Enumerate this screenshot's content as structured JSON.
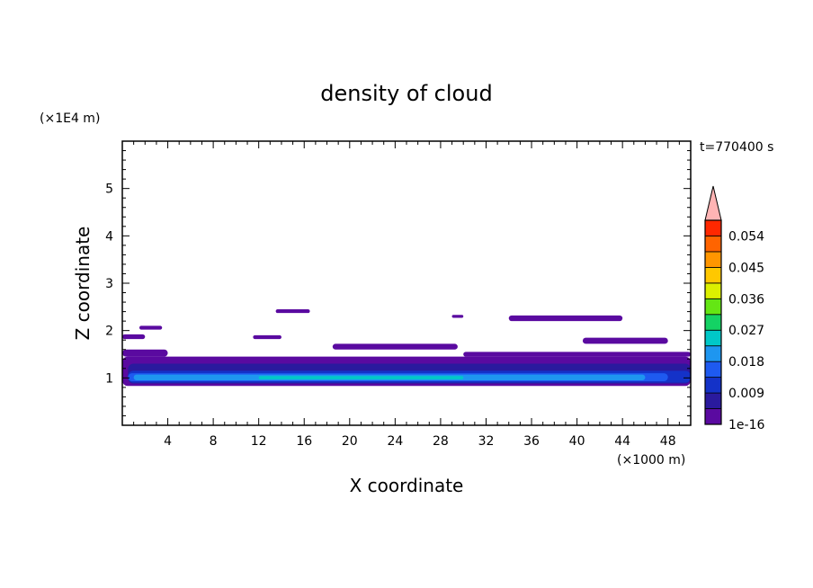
{
  "chart_data": {
    "type": "heatmap",
    "title": "density of cloud",
    "xlabel": "X coordinate",
    "ylabel": "Z coordinate",
    "x_unit": "(×1000 m)",
    "y_unit": "(×1E4 m)",
    "time_label": "t=770400 s",
    "xlim": [
      0,
      50
    ],
    "ylim": [
      0,
      6
    ],
    "x_ticks": [
      4,
      8,
      12,
      16,
      20,
      24,
      28,
      32,
      36,
      40,
      44,
      48
    ],
    "y_ticks": [
      1,
      2,
      3,
      4,
      5
    ],
    "colorbar": {
      "levels": [
        "1e-16",
        "0.009",
        "0.018",
        "0.027",
        "0.036",
        "0.045",
        "0.054"
      ],
      "colors": [
        "#5a0aa0",
        "#2a1a9e",
        "#1432c8",
        "#1e5af0",
        "#1e96f0",
        "#00c8c8",
        "#14d264",
        "#64e614",
        "#dcf000",
        "#ffc800",
        "#ff9600",
        "#ff6400",
        "#ff2800",
        "#ffb4b4"
      ],
      "extend": "max"
    },
    "regions": [
      {
        "level": 0,
        "x": [
          0,
          50
        ],
        "z": [
          0.83,
          1.45
        ]
      },
      {
        "level": 1,
        "x": [
          0.5,
          50
        ],
        "z": [
          0.88,
          1.3
        ]
      },
      {
        "level": 2,
        "x": [
          0.5,
          50
        ],
        "z": [
          0.9,
          1.15
        ]
      },
      {
        "level": 3,
        "x": [
          0.5,
          48
        ],
        "z": [
          0.93,
          1.1
        ]
      },
      {
        "level": 4,
        "x": [
          1,
          46
        ],
        "z": [
          0.95,
          1.07
        ]
      },
      {
        "level": 5,
        "x": [
          12,
          30
        ],
        "z": [
          0.97,
          1.04
        ]
      },
      {
        "level": 0,
        "x": [
          0,
          4
        ],
        "z": [
          1.45,
          1.6
        ]
      },
      {
        "level": 0,
        "x": [
          30,
          50
        ],
        "z": [
          1.45,
          1.55
        ]
      },
      {
        "level": 0,
        "x": [
          18.5,
          29.5
        ],
        "z": [
          1.6,
          1.72
        ]
      },
      {
        "level": 0,
        "x": [
          40.5,
          48
        ],
        "z": [
          1.72,
          1.85
        ]
      },
      {
        "level": 0,
        "x": [
          0,
          2
        ],
        "z": [
          1.82,
          1.92
        ]
      },
      {
        "level": 0,
        "x": [
          11.5,
          14
        ],
        "z": [
          1.82,
          1.9
        ]
      },
      {
        "level": 0,
        "x": [
          1.5,
          3.5
        ],
        "z": [
          2.02,
          2.1
        ]
      },
      {
        "level": 0,
        "x": [
          13.5,
          16.5
        ],
        "z": [
          2.37,
          2.45
        ]
      },
      {
        "level": 0,
        "x": [
          34,
          44
        ],
        "z": [
          2.2,
          2.32
        ]
      },
      {
        "level": 0,
        "x": [
          29,
          30
        ],
        "z": [
          2.27,
          2.33
        ]
      }
    ]
  }
}
